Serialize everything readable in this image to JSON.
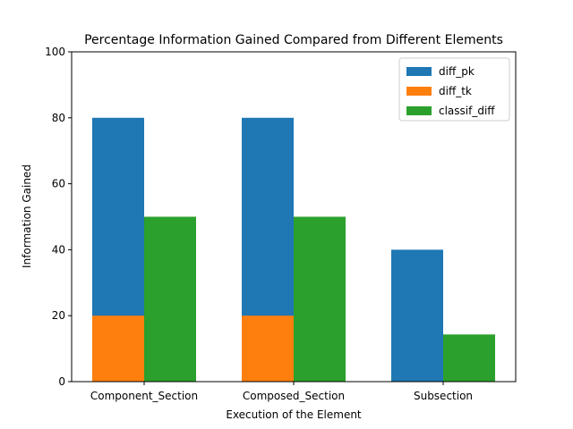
{
  "chart_data": {
    "type": "bar",
    "title": "Percentage Information Gained Compared from Different Elements",
    "xlabel": "Execution of the Element",
    "ylabel": "Information Gained",
    "categories": [
      "Component_Section",
      "Composed_Section",
      "Subsection"
    ],
    "series": [
      {
        "name": "diff_pk",
        "values": [
          80,
          80,
          40
        ],
        "color": "#1f77b4",
        "group": "left"
      },
      {
        "name": "diff_tk",
        "values": [
          20,
          20,
          0
        ],
        "color": "#ff7f0e",
        "group": "left"
      },
      {
        "name": "classif_diff",
        "values": [
          50,
          50,
          14.3
        ],
        "color": "#2ca02c",
        "group": "right"
      }
    ],
    "ylim": [
      0,
      100
    ],
    "yticks": [
      0,
      20,
      40,
      60,
      80,
      100
    ],
    "legend_position": "top-right",
    "grid": false
  }
}
